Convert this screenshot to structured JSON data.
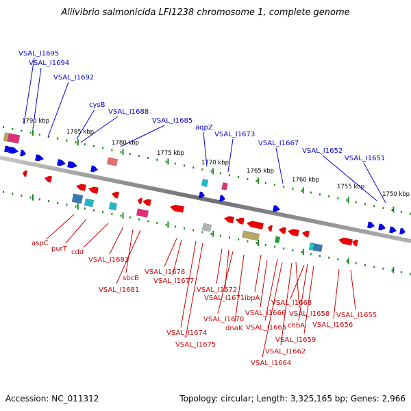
{
  "title": "Aliivibrio salmonicida LFI1238 chromosome 1, complete genome",
  "footer": {
    "accession": "Accession: NC_011312",
    "topology": "Topology: circular; Length: 3,325,165 bp; Genes: 2,966"
  },
  "colors": {
    "forward_gene": "#0000ee",
    "reverse_gene": "#ee0000",
    "forward_label": "#0000cc",
    "reverse_label": "#cc0000",
    "tick": "#1a8a1a",
    "backbone": "#888888"
  },
  "scale_labels": [
    "1790 kbp",
    "1785 kbp",
    "1780 kbp",
    "1775 kbp",
    "1770 kbp",
    "1765 kbp",
    "1760 kbp",
    "1755 kbp",
    "1750 kbp"
  ],
  "top_labels": [
    "VSAL_I1695",
    "VSAL_I1694",
    "VSAL_I1692",
    "cysB",
    "VSAL_I1688",
    "VSAL_I1685",
    "aqpZ",
    "VSAL_I1673",
    "VSAL_I1667",
    "VSAL_I1652",
    "VSAL_I1651"
  ],
  "bottom_labels": [
    "aspC",
    "purT",
    "cdd",
    "VSAL_I1683",
    "sbcB",
    "VSAL_I1681",
    "VSAL_I1678",
    "VSAL_I1677",
    "VSAL_I1674",
    "VSAL_I1675",
    "VSAL_I1672",
    "VSAL_I1671",
    "VSAL_I1670",
    "dnaK",
    "ibpA",
    "VSAL_I1666",
    "VSAL_I1665",
    "VSAL_I1663",
    "VSAL_I1664",
    "VSAL_I1662",
    "chbA",
    "VSAL_I1658",
    "VSAL_I1659",
    "VSAL_I1656",
    "VSAL_I1655"
  ]
}
